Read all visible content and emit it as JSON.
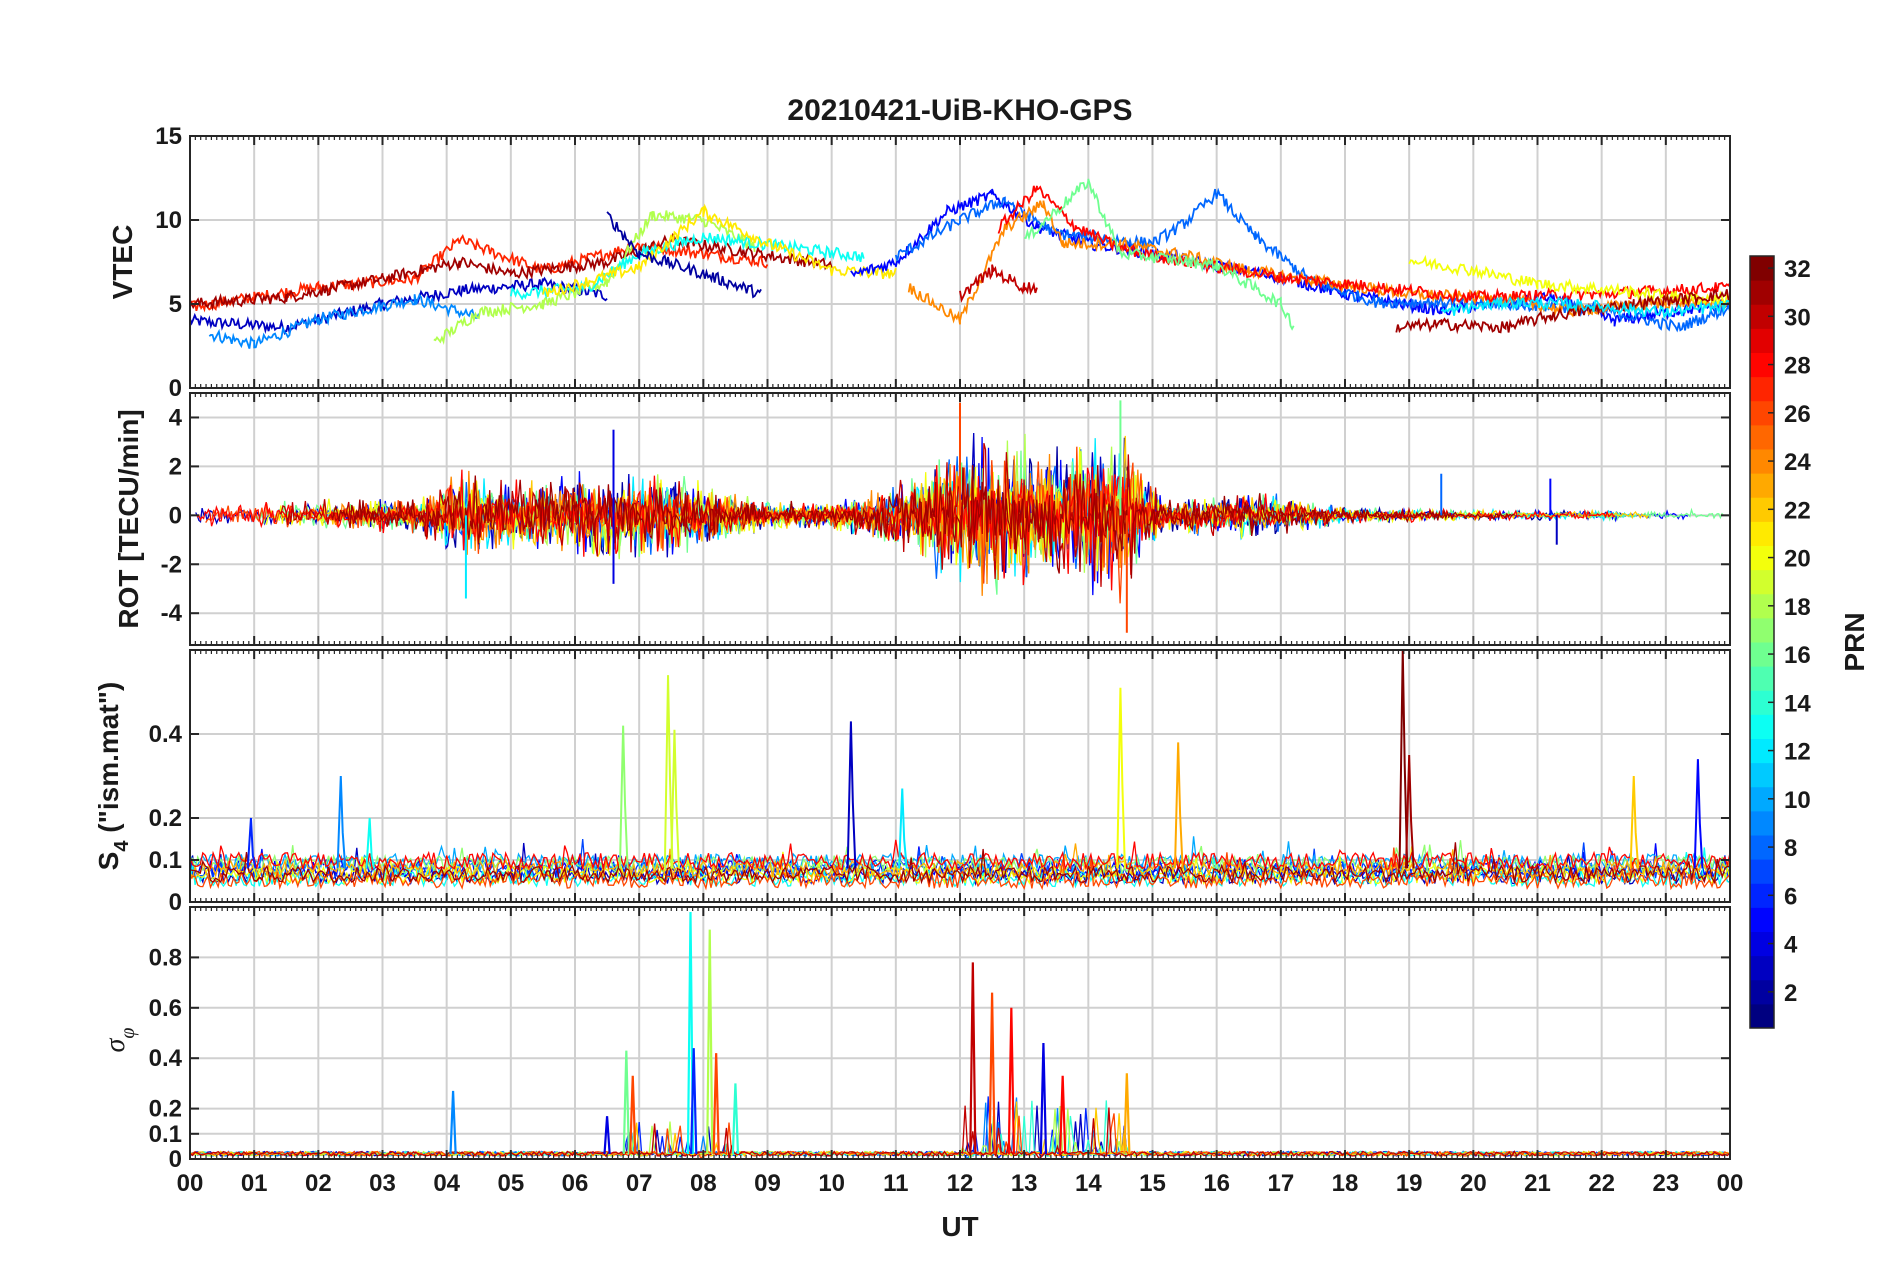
{
  "figure": {
    "title": "20210421-UiB-KHO-GPS",
    "xlabel": "UT",
    "colorbar_label": "PRN"
  },
  "chart_data": [
    {
      "type": "line",
      "panel": "vtec",
      "ylabel": "VTEC",
      "ylim": [
        0,
        15
      ],
      "yticks": [
        "0",
        "5",
        "10",
        "15"
      ],
      "ytick_values": [
        0,
        5,
        10,
        15
      ],
      "xlim": [
        0,
        24
      ],
      "grid": true,
      "series": [
        {
          "prn": 3,
          "points": [
            [
              0,
              4.0
            ],
            [
              1.5,
              3.6
            ],
            [
              3,
              5.0
            ],
            [
              4.2,
              5.8
            ],
            [
              5.5,
              6.2
            ],
            [
              6.5,
              5.5
            ]
          ]
        },
        {
          "prn": 9,
          "points": [
            [
              0.3,
              3.2
            ],
            [
              1,
              2.6
            ],
            [
              2,
              4.1
            ],
            [
              3.5,
              5.3
            ],
            [
              4.5,
              4.2
            ]
          ]
        },
        {
          "prn": 27,
          "points": [
            [
              0,
              4.8
            ],
            [
              1,
              5.4
            ],
            [
              2,
              6.0
            ],
            [
              3.5,
              6.5
            ],
            [
              4.2,
              8.8
            ],
            [
              5.5,
              7.0
            ],
            [
              7,
              8.5
            ],
            [
              8,
              8.0
            ],
            [
              9,
              7.5
            ]
          ]
        },
        {
          "prn": 31,
          "points": [
            [
              0,
              5.0
            ],
            [
              1.5,
              5.4
            ],
            [
              3,
              6.5
            ],
            [
              4.2,
              7.5
            ],
            [
              5,
              6.8
            ],
            [
              6.5,
              7.5
            ],
            [
              7.5,
              8.8
            ],
            [
              8.5,
              8.2
            ],
            [
              10,
              7.3
            ]
          ]
        },
        {
          "prn": 18,
          "points": [
            [
              3.8,
              2.7
            ],
            [
              4.5,
              4.5
            ],
            [
              5.5,
              5.0
            ],
            [
              6.5,
              6.3
            ],
            [
              7.2,
              10.3
            ],
            [
              8,
              10.0
            ],
            [
              8.8,
              8.4
            ]
          ]
        },
        {
          "prn": 13,
          "points": [
            [
              5,
              5.6
            ],
            [
              6.2,
              6.0
            ],
            [
              7,
              8.0
            ],
            [
              8,
              9.0
            ],
            [
              9.5,
              8.3
            ],
            [
              10.5,
              7.8
            ]
          ]
        },
        {
          "prn": 21,
          "points": [
            [
              5.5,
              5.6
            ],
            [
              7,
              7.2
            ],
            [
              8,
              10.5
            ],
            [
              9,
              8.6
            ],
            [
              10,
              7.0
            ],
            [
              11,
              6.8
            ]
          ]
        },
        {
          "prn": 2,
          "points": [
            [
              6.5,
              10.3
            ],
            [
              7,
              8.0
            ],
            [
              8,
              6.8
            ],
            [
              8.9,
              5.6
            ]
          ]
        },
        {
          "prn": 5,
          "points": [
            [
              10.3,
              6.7
            ],
            [
              11,
              7.5
            ],
            [
              11.8,
              10.5
            ],
            [
              12.5,
              11.5
            ],
            [
              13.2,
              9.6
            ],
            [
              14,
              8.6
            ],
            [
              15,
              8.0
            ],
            [
              16,
              7.3
            ],
            [
              17,
              6.6
            ],
            [
              18,
              5.6
            ],
            [
              19.5,
              4.6
            ],
            [
              21.2,
              5.4
            ],
            [
              22.2,
              4.0
            ],
            [
              23.2,
              4.6
            ],
            [
              24,
              5.0
            ]
          ]
        },
        {
          "prn": 8,
          "points": [
            [
              11,
              7.8
            ],
            [
              12,
              10.0
            ],
            [
              12.7,
              11.2
            ],
            [
              13.5,
              9.2
            ],
            [
              15,
              8.6
            ],
            [
              15.5,
              9.8
            ],
            [
              16,
              11.6
            ],
            [
              16.6,
              9.0
            ],
            [
              17.5,
              6.3
            ],
            [
              18.5,
              5.1
            ],
            [
              20,
              5.1
            ],
            [
              22,
              4.7
            ],
            [
              23.2,
              3.6
            ],
            [
              24,
              4.8
            ]
          ]
        },
        {
          "prn": 24,
          "points": [
            [
              11.2,
              6.0
            ],
            [
              12,
              4.0
            ],
            [
              12.7,
              9.5
            ],
            [
              13.3,
              11.0
            ],
            [
              13.6,
              8.6
            ],
            [
              14.5,
              8.6
            ],
            [
              15.5,
              7.9
            ],
            [
              16.5,
              7.0
            ],
            [
              17.5,
              6.4
            ],
            [
              19,
              5.6
            ],
            [
              20.5,
              5.3
            ],
            [
              21.5,
              4.6
            ],
            [
              23,
              5.1
            ],
            [
              24,
              5.1
            ]
          ]
        },
        {
          "prn": 28,
          "points": [
            [
              12.6,
              9.5
            ],
            [
              13.2,
              11.9
            ],
            [
              13.8,
              9.6
            ],
            [
              14.5,
              8.3
            ],
            [
              15.5,
              7.5
            ],
            [
              17,
              6.6
            ],
            [
              18.5,
              6.0
            ],
            [
              20,
              5.4
            ],
            [
              22,
              5.6
            ],
            [
              24,
              6.0
            ]
          ]
        },
        {
          "prn": 30,
          "points": [
            [
              12,
              5.5
            ],
            [
              12.5,
              7.0
            ],
            [
              13,
              6.0
            ],
            [
              13.2,
              6.0
            ]
          ]
        },
        {
          "prn": 16,
          "points": [
            [
              13,
              8.8
            ],
            [
              14,
              12.3
            ],
            [
              14.5,
              8.0
            ],
            [
              15,
              7.8
            ],
            [
              16,
              7.3
            ],
            [
              17,
              5.0
            ],
            [
              17.2,
              3.7
            ]
          ]
        },
        {
          "prn": 20,
          "points": [
            [
              19,
              7.6
            ],
            [
              20,
              7.0
            ],
            [
              21,
              6.2
            ],
            [
              22,
              5.9
            ],
            [
              23.5,
              5.3
            ],
            [
              24,
              5.3
            ]
          ]
        },
        {
          "prn": 31,
          "points": [
            [
              18.8,
              3.6
            ],
            [
              19.5,
              3.8
            ],
            [
              20.5,
              3.6
            ],
            [
              21.2,
              4.3
            ],
            [
              22.5,
              5.0
            ],
            [
              24,
              5.6
            ]
          ]
        },
        {
          "prn": 12,
          "points": [
            [
              19.5,
              4.5
            ],
            [
              20.5,
              5.1
            ],
            [
              21.5,
              5.0
            ],
            [
              23,
              4.5
            ],
            [
              24,
              4.9
            ]
          ]
        }
      ]
    },
    {
      "type": "line",
      "panel": "rot",
      "ylabel": "ROT [TECU/min]",
      "ylim": [
        -5.3,
        5.0
      ],
      "yticks": [
        "-4",
        "-2",
        "0",
        "2",
        "4"
      ],
      "ytick_values": [
        -4,
        -2,
        0,
        2,
        4
      ],
      "xlim": [
        0,
        24
      ],
      "grid": true,
      "activity_envelope": {
        "x": [
          0,
          1.5,
          2.5,
          3.5,
          4.2,
          5.5,
          6.5,
          7.5,
          9,
          10,
          11,
          12,
          12.6,
          13.3,
          14.5,
          15.2,
          16.5,
          18,
          20,
          22,
          24
        ],
        "amplitude": [
          0.7,
          0.9,
          0.9,
          1.0,
          2.4,
          2.0,
          2.6,
          2.4,
          0.8,
          0.8,
          1.8,
          4.2,
          4.6,
          4.0,
          4.6,
          0.9,
          1.4,
          0.5,
          0.3,
          0.3,
          0.3
        ]
      },
      "peaks": [
        {
          "x": 12.0,
          "y": 4.6,
          "prn": 26
        },
        {
          "x": 14.5,
          "y": 4.7,
          "prn": 16
        },
        {
          "x": 14.6,
          "y": -4.8,
          "prn": 26
        },
        {
          "x": 4.3,
          "y": -3.4,
          "prn": 12
        },
        {
          "x": 6.6,
          "y": 3.5,
          "prn": 4
        },
        {
          "x": 6.6,
          "y": -2.8,
          "prn": 4
        },
        {
          "x": 19.5,
          "y": 1.7,
          "prn": 8
        },
        {
          "x": 21.2,
          "y": 1.5,
          "prn": 5
        },
        {
          "x": 21.3,
          "y": -1.2,
          "prn": 3
        }
      ]
    },
    {
      "type": "line",
      "panel": "s4",
      "ylabel": "S4 (\"ism.mat\")",
      "ylim": [
        0,
        0.6
      ],
      "yticks": [
        "0",
        "0.1",
        "0.2",
        "0.4"
      ],
      "ytick_values": [
        0,
        0.1,
        0.2,
        0.4
      ],
      "xlim": [
        0,
        24
      ],
      "grid": true,
      "baseline": 0.08,
      "peaks": [
        {
          "x": 0.95,
          "y": 0.2,
          "prn": 6
        },
        {
          "x": 2.35,
          "y": 0.3,
          "prn": 9
        },
        {
          "x": 2.8,
          "y": 0.2,
          "prn": 13
        },
        {
          "x": 6.75,
          "y": 0.42,
          "prn": 17
        },
        {
          "x": 7.45,
          "y": 0.54,
          "prn": 19
        },
        {
          "x": 7.55,
          "y": 0.41,
          "prn": 19
        },
        {
          "x": 10.3,
          "y": 0.43,
          "prn": 3
        },
        {
          "x": 11.1,
          "y": 0.27,
          "prn": 12
        },
        {
          "x": 14.5,
          "y": 0.51,
          "prn": 20
        },
        {
          "x": 15.4,
          "y": 0.38,
          "prn": 23
        },
        {
          "x": 18.9,
          "y": 0.6,
          "prn": 32
        },
        {
          "x": 19.0,
          "y": 0.35,
          "prn": 31
        },
        {
          "x": 22.5,
          "y": 0.3,
          "prn": 22
        },
        {
          "x": 23.5,
          "y": 0.34,
          "prn": 5
        }
      ]
    },
    {
      "type": "line",
      "panel": "sigma_phi",
      "ylabel": "σ_φ",
      "ylim": [
        0,
        1.0
      ],
      "yticks": [
        "0",
        "0.1",
        "0.2",
        "0.4",
        "0.6",
        "0.8"
      ],
      "ytick_values": [
        0,
        0.1,
        0.2,
        0.4,
        0.6,
        0.8
      ],
      "xlim": [
        0,
        24
      ],
      "xticks": [
        "00",
        "01",
        "02",
        "03",
        "04",
        "05",
        "06",
        "07",
        "08",
        "09",
        "10",
        "11",
        "12",
        "13",
        "14",
        "15",
        "16",
        "17",
        "18",
        "19",
        "20",
        "21",
        "22",
        "23",
        "00"
      ],
      "grid": true,
      "baseline": 0.02,
      "peaks": [
        {
          "x": 4.1,
          "y": 0.27,
          "prn": 9
        },
        {
          "x": 6.5,
          "y": 0.17,
          "prn": 4
        },
        {
          "x": 6.8,
          "y": 0.43,
          "prn": 16
        },
        {
          "x": 6.9,
          "y": 0.33,
          "prn": 26
        },
        {
          "x": 7.8,
          "y": 0.98,
          "prn": 13
        },
        {
          "x": 7.85,
          "y": 0.44,
          "prn": 6
        },
        {
          "x": 8.1,
          "y": 0.91,
          "prn": 18
        },
        {
          "x": 8.2,
          "y": 0.42,
          "prn": 26
        },
        {
          "x": 8.5,
          "y": 0.3,
          "prn": 14
        },
        {
          "x": 12.2,
          "y": 0.78,
          "prn": 30
        },
        {
          "x": 12.5,
          "y": 0.66,
          "prn": 26
        },
        {
          "x": 12.8,
          "y": 0.6,
          "prn": 28
        },
        {
          "x": 13.3,
          "y": 0.46,
          "prn": 4
        },
        {
          "x": 13.6,
          "y": 0.33,
          "prn": 28
        },
        {
          "x": 14.6,
          "y": 0.34,
          "prn": 23
        }
      ]
    }
  ],
  "colorbar": {
    "label": "PRN",
    "colormap": "jet",
    "range": [
      1,
      32
    ],
    "ticks": [
      "2",
      "4",
      "6",
      "8",
      "10",
      "12",
      "14",
      "16",
      "18",
      "20",
      "22",
      "24",
      "26",
      "28",
      "30",
      "32"
    ],
    "tick_values": [
      2,
      4,
      6,
      8,
      10,
      12,
      14,
      16,
      18,
      20,
      22,
      24,
      26,
      28,
      30,
      32
    ]
  }
}
